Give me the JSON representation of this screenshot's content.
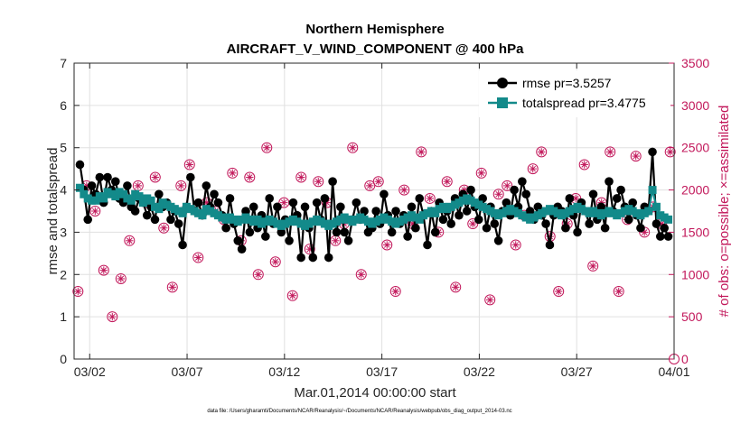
{
  "chart_data": {
    "type": "line",
    "title": "Northern Hemisphere",
    "subtitle": "AIRCRAFT_V_WIND_COMPONENT @ 400 hPa",
    "xlabel": "Mar.01,2014 00:00:00 start",
    "ylabel": "rmse and totalspread",
    "ylabel_right": "# of obs: o=possible; ×=assimilated",
    "footnote": "data file: /Users/gharamti/Documents/NCAR/Reanalysis/~/Documents/NCAR/Reanalysis/webpub/obs_diag_output_2014-03.nc",
    "x_tick_labels": [
      "03/02",
      "03/07",
      "03/12",
      "03/17",
      "03/22",
      "03/27",
      "04/01"
    ],
    "x_tick_days": [
      1,
      6,
      11,
      16,
      21,
      26,
      31
    ],
    "xlim": [
      0.2,
      31
    ],
    "ylim": [
      0,
      7
    ],
    "y_ticks": [
      0,
      1,
      2,
      3,
      4,
      5,
      6,
      7
    ],
    "ylim_right": [
      0,
      3500
    ],
    "y_ticks_right": [
      0,
      500,
      1000,
      1500,
      2000,
      2500,
      3000,
      3500
    ],
    "legend_position": "top-right",
    "grid": true,
    "colors": {
      "rmse": "#000000",
      "totalspread": "#138a8a",
      "obs": "#c2185b",
      "grid": "#e0e0e0"
    },
    "series": [
      {
        "name": "rmse",
        "legend": "rmse pr=3.5257",
        "axis": "left",
        "values": [
          4.6,
          4.0,
          3.3,
          4.1,
          3.9,
          4.3,
          3.7,
          4.3,
          4.0,
          4.2,
          3.8,
          3.7,
          4.1,
          3.6,
          3.5,
          3.8,
          3.7,
          3.4,
          3.6,
          3.3,
          3.9,
          3.6,
          3.7,
          3.3,
          3.5,
          3.2,
          2.7,
          3.6,
          4.3,
          3.5,
          3.7,
          3.4,
          4.1,
          3.6,
          3.9,
          3.7,
          3.4,
          3.1,
          3.8,
          3.2,
          2.8,
          2.6,
          3.5,
          3.0,
          3.6,
          3.1,
          3.4,
          2.9,
          3.8,
          3.2,
          3.6,
          3.0,
          3.3,
          2.8,
          3.7,
          3.4,
          2.4,
          3.6,
          3.1,
          2.4,
          3.7,
          3.3,
          3.8,
          2.4,
          4.2,
          3.0,
          3.6,
          3.0,
          2.8,
          3.3,
          3.7,
          3.3,
          3.5,
          3.0,
          3.1,
          3.5,
          3.2,
          3.9,
          3.4,
          3.0,
          3.5,
          3.2,
          3.4,
          2.9,
          3.6,
          3.1,
          3.8,
          3.4,
          2.7,
          3.5,
          3.0,
          3.7,
          3.3,
          3.5,
          3.2,
          3.8,
          3.4,
          3.9,
          3.5,
          4.0,
          3.6,
          3.3,
          3.8,
          3.1,
          3.6,
          3.2,
          2.8,
          3.5,
          3.7,
          3.4,
          4.0,
          3.6,
          4.2,
          3.9,
          3.5,
          3.3,
          3.6,
          3.4,
          3.2,
          2.7,
          3.4,
          3.6,
          3.5,
          3.1,
          3.8,
          3.4,
          3.0,
          3.7,
          3.5,
          3.2,
          3.9,
          3.3,
          3.6,
          3.1,
          4.2,
          3.5,
          3.8,
          4.0,
          3.6,
          3.3,
          3.7,
          3.4,
          3.1,
          3.6,
          3.5,
          4.9,
          3.2,
          2.9,
          3.1,
          2.9
        ],
        "marker": "circle"
      },
      {
        "name": "totalspread",
        "legend": "totalspread pr=3.4775",
        "axis": "left",
        "values": [
          4.05,
          3.9,
          3.8,
          3.75,
          3.75,
          3.85,
          3.8,
          3.95,
          3.9,
          3.85,
          3.95,
          3.9,
          3.8,
          3.75,
          3.9,
          3.85,
          3.7,
          3.8,
          3.75,
          3.6,
          3.55,
          3.7,
          3.65,
          3.6,
          3.55,
          3.5,
          3.45,
          3.6,
          3.55,
          3.5,
          3.45,
          3.4,
          3.55,
          3.5,
          3.45,
          3.4,
          3.35,
          3.3,
          3.35,
          3.3,
          3.25,
          3.3,
          3.35,
          3.3,
          3.25,
          3.3,
          3.2,
          3.25,
          3.3,
          3.25,
          3.2,
          3.15,
          3.2,
          3.25,
          3.3,
          3.25,
          3.2,
          3.15,
          3.2,
          3.25,
          3.3,
          3.25,
          3.2,
          3.15,
          3.2,
          3.25,
          3.3,
          3.35,
          3.3,
          3.25,
          3.3,
          3.35,
          3.3,
          3.25,
          3.2,
          3.25,
          3.3,
          3.35,
          3.3,
          3.25,
          3.2,
          3.25,
          3.3,
          3.35,
          3.4,
          3.35,
          3.3,
          3.4,
          3.45,
          3.5,
          3.45,
          3.55,
          3.6,
          3.55,
          3.6,
          3.65,
          3.7,
          3.75,
          3.8,
          3.75,
          3.7,
          3.65,
          3.6,
          3.55,
          3.5,
          3.45,
          3.4,
          3.45,
          3.5,
          3.55,
          3.5,
          3.45,
          3.4,
          3.35,
          3.3,
          3.35,
          3.4,
          3.45,
          3.5,
          3.55,
          3.5,
          3.45,
          3.4,
          3.45,
          3.5,
          3.55,
          3.6,
          3.55,
          3.5,
          3.45,
          3.5,
          3.45,
          3.4,
          3.45,
          3.5,
          3.45,
          3.4,
          3.45,
          3.5,
          3.55,
          3.5,
          3.45,
          3.4,
          3.45,
          3.5,
          4.0,
          3.6,
          3.4,
          3.35,
          3.3
        ],
        "marker": "square"
      },
      {
        "name": "obs_possible",
        "axis": "right",
        "marker": "open-circle",
        "values": [
          800,
          2050,
          1750,
          1050,
          500,
          950,
          1400,
          2050,
          1850,
          2150,
          1550,
          850,
          2050,
          2300,
          1200,
          1850,
          1750,
          1650,
          2200,
          1400,
          2150,
          1000,
          2500,
          1150,
          1850,
          750,
          2150,
          1300,
          2100,
          1850,
          1400,
          1600,
          2500,
          1000,
          2050,
          2100,
          1350,
          800,
          2000,
          1600,
          2450,
          1900,
          1500,
          2100,
          850,
          2000,
          1600,
          2200,
          700,
          1950,
          2050,
          1350,
          1700,
          2250,
          2450,
          1450,
          800,
          1600,
          1900,
          2300,
          1100,
          1850,
          2450,
          800,
          1650,
          2400,
          1500,
          1800,
          1600,
          2450,
          1750,
          1600,
          2300,
          1900,
          850,
          1450,
          1900,
          2000,
          1350,
          1700,
          850,
          1650,
          1900,
          2250,
          1400,
          2050,
          850,
          1550,
          2100,
          2400,
          1900,
          1400,
          1650,
          2250,
          1500,
          2350,
          1650,
          2300,
          1600,
          1950,
          2350,
          1400,
          1900,
          1600,
          1950,
          1150,
          2100,
          1400,
          1500,
          1950,
          1300,
          1800,
          2000,
          1600,
          1350,
          1850,
          2100,
          1500,
          1650,
          1800,
          700,
          2100,
          1750,
          2000,
          1500,
          1900,
          2400,
          2450,
          1450,
          1800,
          1950,
          1350,
          2000,
          2400,
          1600,
          1800,
          2400,
          1750,
          800,
          2150,
          1900,
          2350,
          1550,
          1700,
          1600,
          2450,
          850,
          1950,
          1500,
          1500
        ],
        "visible_count": 70
      },
      {
        "name": "obs_assimilated",
        "axis": "right",
        "marker": "star",
        "values": [
          800,
          2050,
          1750,
          1050,
          500,
          950,
          1400,
          2050,
          1850,
          2150,
          1550,
          850,
          2050,
          2300,
          1200,
          1850,
          1750,
          1650,
          2200,
          1400,
          2150,
          1000,
          2500,
          1150,
          1850,
          750,
          2150,
          1300,
          2100,
          1850,
          1400,
          1600,
          2500,
          1000,
          2050,
          2100,
          1350,
          800,
          2000,
          1600,
          2450,
          1900,
          1500,
          2100,
          850,
          2000,
          1600,
          2200,
          700,
          1950,
          2050,
          1350,
          1700,
          2250,
          2450,
          1450,
          800,
          1600,
          1900,
          2300,
          1100,
          1850,
          2450,
          800,
          1650,
          2400,
          1500,
          1800,
          1600,
          2450,
          1750,
          1600,
          2300,
          1900,
          850,
          1450,
          1900,
          2000,
          1350,
          1700,
          850,
          1650,
          1900,
          2250,
          1400,
          2050,
          850,
          1550,
          2100,
          2400,
          1900,
          1400,
          1650,
          2250,
          1500,
          2350,
          1650,
          2300,
          1600,
          1950,
          2350,
          1400,
          1900,
          1600,
          1950,
          1150,
          2100,
          1400,
          1500,
          1950,
          1300,
          1800,
          2000,
          1600,
          1350,
          1850,
          2100,
          1500,
          1650,
          1800,
          700,
          2100,
          1750,
          2000,
          1500,
          1900,
          2400,
          2450,
          1450,
          1800,
          1950,
          1350,
          2000,
          2400,
          1600,
          1800,
          2400,
          1750,
          800,
          2150,
          1900,
          2350,
          1550,
          1700,
          1600,
          2450,
          850,
          1950,
          1500,
          1500
        ]
      }
    ]
  }
}
